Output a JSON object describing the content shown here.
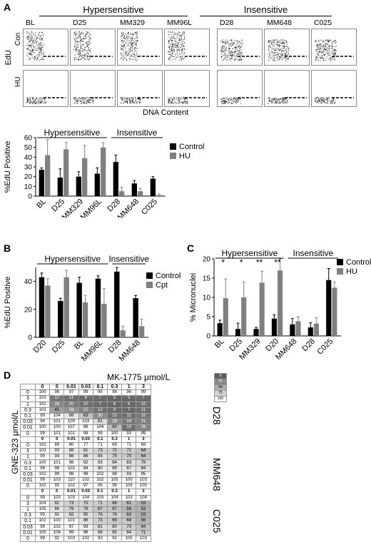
{
  "panel_labels": {
    "a": "A",
    "b": "B",
    "c": "C",
    "d": "D"
  },
  "panel_a": {
    "group_hyper": "Hypersensitive",
    "group_insens": "Insensitive",
    "lines": [
      "BL",
      "D25",
      "MM329",
      "MM96L",
      "D28",
      "MM648",
      "C025"
    ],
    "ylabel": "EdU",
    "row_labels": [
      "Con",
      "HU"
    ],
    "xlabel": "DNA Content"
  },
  "chart_data": [
    {
      "type": "bar",
      "panel": "A",
      "group_labels": [
        "Hypersensitive",
        "Insensitive"
      ],
      "categories": [
        "BL",
        "D25",
        "MM329",
        "MM96L",
        "D28",
        "MM648",
        "C025"
      ],
      "ylabel": "%EdU Positive",
      "ylim": [
        0,
        60
      ],
      "yticks": [
        0,
        10,
        20,
        30,
        40,
        50,
        60
      ],
      "legend": "right",
      "series": [
        {
          "name": "Control",
          "color": "#000000",
          "values": [
            27,
            19,
            20,
            23,
            35,
            13,
            18
          ],
          "errors": [
            2,
            9,
            5,
            6,
            7,
            3,
            2
          ]
        },
        {
          "name": "HU",
          "color": "#808080",
          "values": [
            42,
            48,
            39,
            50,
            5,
            5,
            1
          ],
          "errors": [
            16,
            7,
            13,
            5,
            4,
            3,
            1
          ]
        }
      ]
    },
    {
      "type": "bar",
      "panel": "B",
      "group_labels": [
        "Hypersensitive",
        "Insensitive"
      ],
      "categories": [
        "D20",
        "D25",
        "BL",
        "MM96L",
        "D28",
        "MM648"
      ],
      "ylabel": "%EdU Positive",
      "ylim": [
        0,
        50
      ],
      "yticks": [
        0,
        20,
        40
      ],
      "legend": "right",
      "series": [
        {
          "name": "Control",
          "color": "#000000",
          "values": [
            43,
            26,
            39,
            42,
            47,
            28
          ],
          "errors": [
            3,
            2,
            4,
            2,
            3,
            2
          ]
        },
        {
          "name": "Cpt",
          "color": "#808080",
          "values": [
            37,
            43,
            25,
            24,
            5,
            8
          ],
          "errors": [
            5,
            5,
            5,
            11,
            3,
            5
          ]
        }
      ]
    },
    {
      "type": "bar",
      "panel": "C",
      "group_labels": [
        "Hypersensitive",
        "Insensitive"
      ],
      "categories": [
        "BL",
        "D25",
        "MM329",
        "D20",
        "MM648",
        "D28",
        "C025"
      ],
      "ylabel": "% Micronuclei",
      "ylim": [
        0,
        20
      ],
      "yticks": [
        0,
        5,
        10,
        15,
        20
      ],
      "significance": [
        "*",
        "*",
        "**",
        "**",
        "",
        "",
        ""
      ],
      "legend": "top-right",
      "series": [
        {
          "name": "Control",
          "color": "#000000",
          "values": [
            3.3,
            1.8,
            1.8,
            4.5,
            3.0,
            2.2,
            14.5
          ],
          "errors": [
            0.8,
            1.5,
            0.4,
            1.0,
            1.5,
            1.2,
            3.0
          ]
        },
        {
          "name": "HU",
          "color": "#808080",
          "values": [
            9.8,
            10.0,
            13.8,
            17.0,
            3.8,
            3.2,
            12.5
          ],
          "errors": [
            5.0,
            4.0,
            3.0,
            3.0,
            1.2,
            1.5,
            1.5
          ]
        }
      ]
    },
    {
      "type": "heatmap",
      "panel": "D",
      "title": "MK-1775 μmol/L",
      "ylabel": "GNE-323 μmol/L",
      "col_headers": [
        "0",
        "0",
        "0.01",
        "0.03",
        "0.1",
        "0.3",
        "1",
        "3"
      ],
      "blocks": [
        {
          "name": "D28",
          "row_labels": [
            "0",
            "3",
            "1",
            "0.3",
            "0.1",
            "0.03",
            "0.01",
            "0"
          ],
          "values": [
            [
              100,
              98,
              97,
              99,
              95,
              98,
              96,
              99
            ],
            [
              103,
              17,
              11,
              9,
              7,
              5,
              5,
              7
            ],
            [
              102,
              26,
              20,
              10,
              7,
              6,
              6,
              10
            ],
            [
              102,
              41,
              34,
              21,
              12,
              8,
              7,
              11
            ],
            [
              99,
              104,
              88,
              63,
              30,
              12,
              11,
              15
            ],
            [
              94,
              101,
              100,
              103,
              81,
              29,
              18,
              21
            ],
            [
              100,
              100,
              107,
              98,
              104,
              60,
              10,
              26
            ],
            [
              99,
              101,
              101,
              98,
              99,
              100,
              93,
              99
            ]
          ]
        },
        {
          "name": "MM648",
          "row_labels": [
            "0",
            "3",
            "1",
            "0.3",
            "0.1",
            "0.03",
            "0.01",
            "0"
          ],
          "values": [
            [
              102,
              89,
              80,
              77,
              71,
              69,
              71,
              69
            ],
            [
              103,
              93,
              88,
              81,
              73,
              72,
              72,
              64
            ],
            [
              99,
              93,
              88,
              86,
              85,
              75,
              70,
              64
            ],
            [
              100,
              101,
              98,
              92,
              93,
              84,
              83,
              78
            ],
            [
              98,
              98,
              102,
              94,
              90,
              89,
              87,
              84
            ],
            [
              102,
              99,
              98,
              98,
              102,
              98,
              93,
              95
            ],
            [
              99,
              103,
              110,
              102,
              102,
              105,
              100,
              103
            ],
            [
              102,
              93,
              102,
              97,
              95,
              99,
              105,
              100
            ]
          ]
        },
        {
          "name": "C025",
          "row_labels": [
            "0",
            "3",
            "1",
            "0.3",
            "0.1",
            "0.03",
            "0.01",
            "0"
          ],
          "values": [
            [
              99,
              103,
              103,
              104,
              103,
              104,
              103,
              104
            ],
            [
              104,
              82,
              73,
              75,
              71,
              68,
              62,
              53
            ],
            [
              105,
              86,
              76,
              76,
              67,
              67,
              56,
              53
            ],
            [
              95,
              92,
              82,
              85,
              76,
              76,
              63,
              53
            ],
            [
              102,
              100,
              101,
              86,
              73,
              69,
              68,
              56
            ],
            [
              99,
              102,
              97,
              93,
              81,
              80,
              73,
              64
            ],
            [
              105,
              106,
              99,
              96,
              88,
              85,
              84,
              71
            ],
            [
              99,
              92,
              103,
              102,
              93,
              92,
              105,
              103
            ]
          ]
        }
      ]
    }
  ],
  "colorscale_labels": [
    "0",
    "25",
    "50",
    "75",
    "100"
  ]
}
